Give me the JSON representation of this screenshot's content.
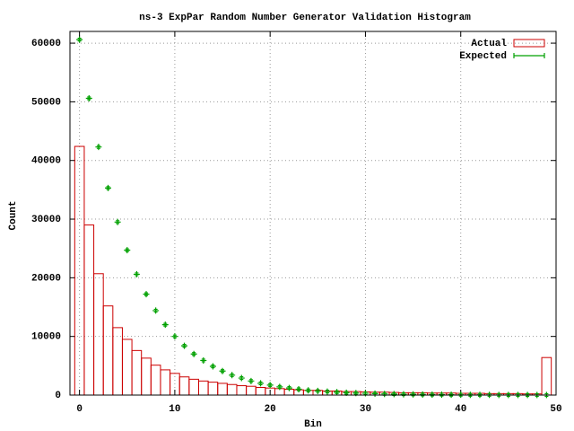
{
  "chart_data": {
    "type": "bar",
    "title": "ns-3 ExpPar Random Number Generator Validation Histogram",
    "xlabel": "Bin",
    "ylabel": "Count",
    "x": [
      0,
      1,
      2,
      3,
      4,
      5,
      6,
      7,
      8,
      9,
      10,
      11,
      12,
      13,
      14,
      15,
      16,
      17,
      18,
      19,
      20,
      21,
      22,
      23,
      24,
      25,
      26,
      27,
      28,
      29,
      30,
      31,
      32,
      33,
      34,
      35,
      36,
      37,
      38,
      39,
      40,
      41,
      42,
      43,
      44,
      45,
      46,
      47,
      48,
      49
    ],
    "series": [
      {
        "name": "Actual",
        "color": "#cc0000",
        "style": "boxes",
        "values": [
          42400,
          29000,
          20700,
          15200,
          11500,
          9500,
          7600,
          6300,
          5100,
          4300,
          3700,
          3100,
          2700,
          2400,
          2200,
          2000,
          1800,
          1600,
          1500,
          1300,
          1200,
          1100,
          1000,
          900,
          800,
          800,
          700,
          700,
          600,
          600,
          550,
          500,
          500,
          450,
          400,
          400,
          400,
          350,
          350,
          350,
          300,
          300,
          300,
          250,
          250,
          250,
          250,
          200,
          200,
          6400
        ]
      },
      {
        "name": "Expected",
        "color": "#00a000",
        "style": "errorbars",
        "values": [
          60600,
          50600,
          42300,
          35300,
          29500,
          24700,
          20600,
          17200,
          14400,
          12000,
          10000,
          8400,
          7000,
          5900,
          4900,
          4100,
          3400,
          2900,
          2400,
          2000,
          1700,
          1400,
          1200,
          1000,
          800,
          700,
          600,
          500,
          400,
          350,
          300,
          250,
          200,
          170,
          140,
          120,
          100,
          80,
          70,
          60,
          50,
          40,
          35,
          30,
          25,
          20,
          17,
          14,
          12,
          10
        ]
      }
    ],
    "xlim": [
      -1,
      50
    ],
    "ylim": [
      0,
      62000
    ],
    "xticks": [
      0,
      10,
      20,
      30,
      40,
      50
    ],
    "yticks": [
      0,
      10000,
      20000,
      30000,
      40000,
      50000,
      60000
    ],
    "grid": true,
    "legend": "top-right"
  }
}
